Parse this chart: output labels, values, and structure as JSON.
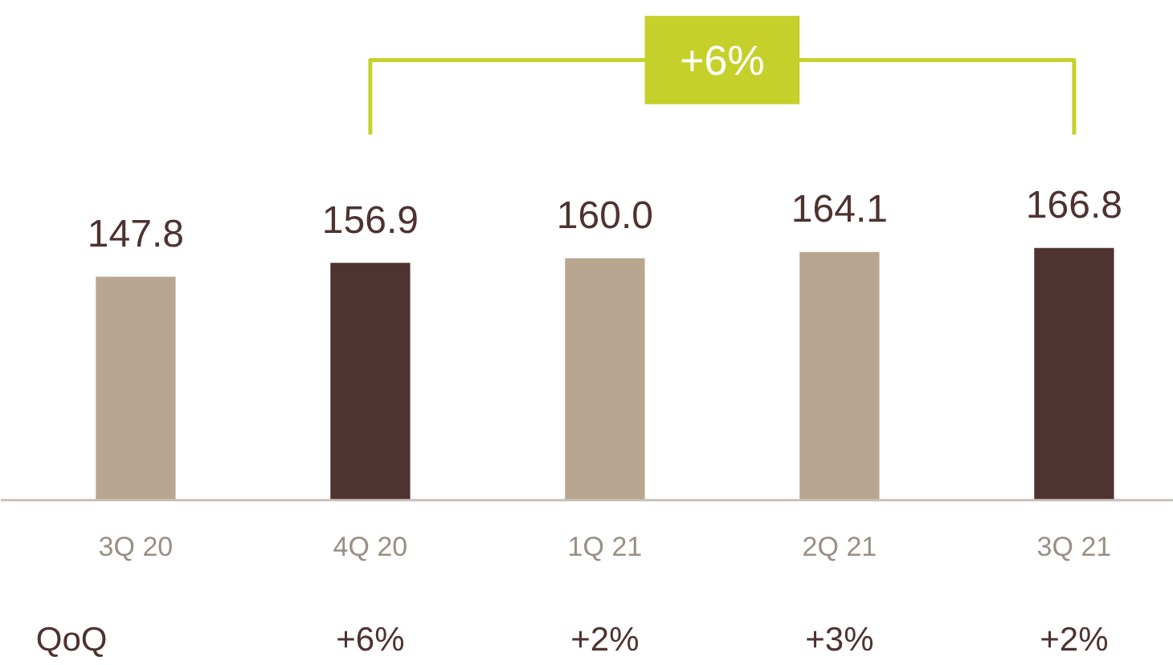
{
  "chart_data": {
    "type": "bar",
    "categories": [
      "3Q 20",
      "4Q 20",
      "1Q 21",
      "2Q 21",
      "3Q 21"
    ],
    "values": [
      147.8,
      156.9,
      160.0,
      164.1,
      166.8
    ],
    "colors": [
      "#b8a690",
      "#4e3330",
      "#b8a690",
      "#b8a690",
      "#4e3330"
    ],
    "value_labels": [
      "147.8",
      "156.9",
      "160.0",
      "164.1",
      "166.8"
    ],
    "annotations": [
      "+6%",
      "QoQ",
      "+6%",
      "+2%",
      "+3%",
      "+2%"
    ]
  }
}
